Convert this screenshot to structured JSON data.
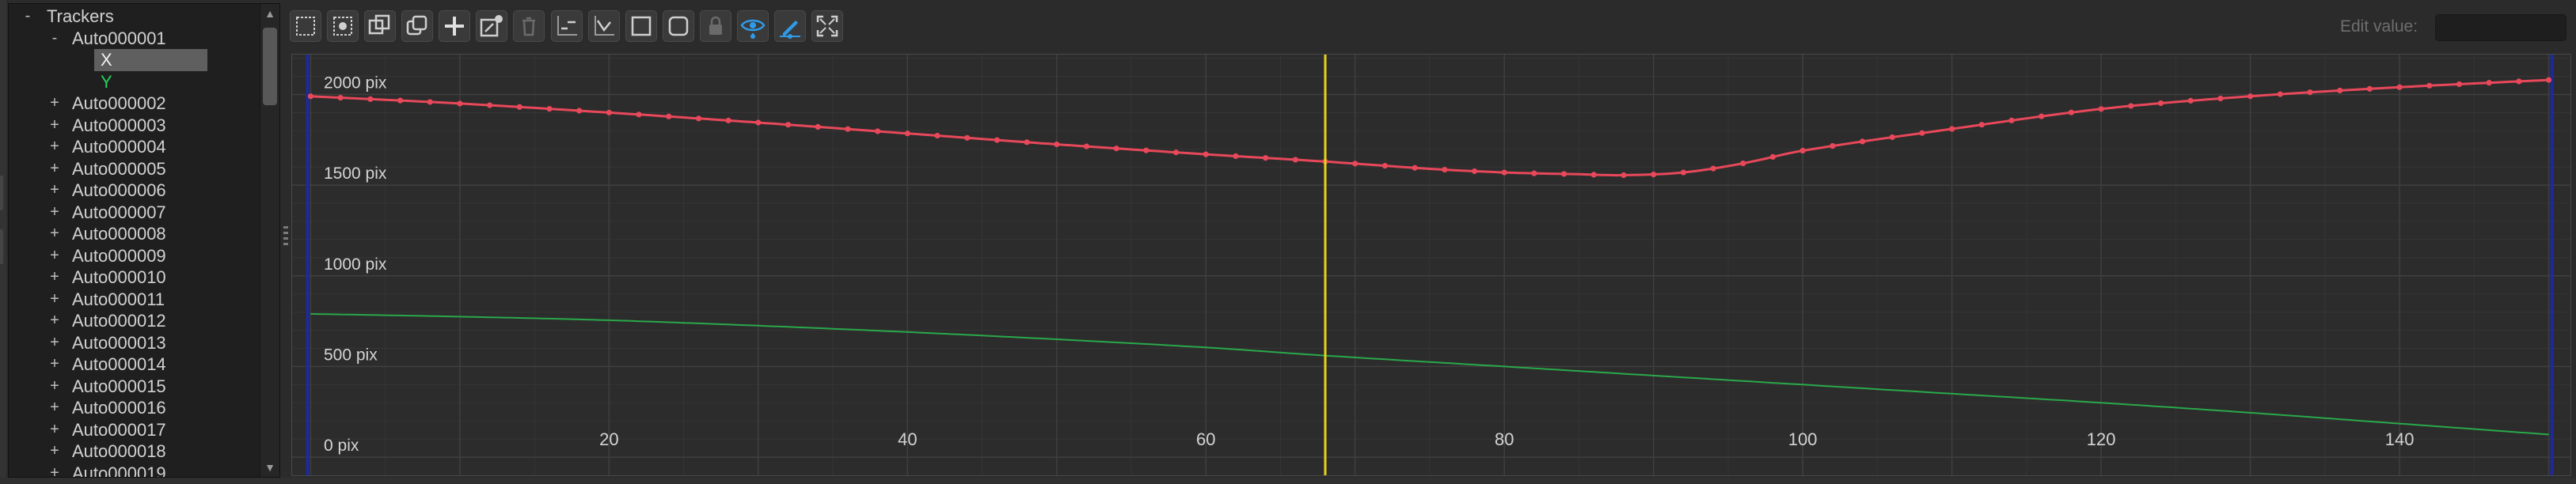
{
  "tree": {
    "root": {
      "label": "Trackers",
      "expander": "-"
    },
    "expanded_tracker": {
      "label": "Auto000001",
      "expander": "-"
    },
    "children": [
      {
        "label": "X",
        "selected": true
      },
      {
        "label": "Y",
        "selected": false
      }
    ],
    "trackers": [
      {
        "label": "Auto000002",
        "expander": "+"
      },
      {
        "label": "Auto000003",
        "expander": "+"
      },
      {
        "label": "Auto000004",
        "expander": "+"
      },
      {
        "label": "Auto000005",
        "expander": "+"
      },
      {
        "label": "Auto000006",
        "expander": "+"
      },
      {
        "label": "Auto000007",
        "expander": "+"
      },
      {
        "label": "Auto000008",
        "expander": "+"
      },
      {
        "label": "Auto000009",
        "expander": "+"
      },
      {
        "label": "Auto000010",
        "expander": "+"
      },
      {
        "label": "Auto000011",
        "expander": "+"
      },
      {
        "label": "Auto000012",
        "expander": "+"
      },
      {
        "label": "Auto000013",
        "expander": "+"
      },
      {
        "label": "Auto000014",
        "expander": "+"
      },
      {
        "label": "Auto000015",
        "expander": "+"
      },
      {
        "label": "Auto000016",
        "expander": "+"
      },
      {
        "label": "Auto000017",
        "expander": "+"
      },
      {
        "label": "Auto000018",
        "expander": "+"
      },
      {
        "label": "Auto000019",
        "expander": "+"
      }
    ],
    "scroll_arrows": {
      "up": "▲",
      "down": "▼"
    }
  },
  "toolbar": {
    "buttons": [
      {
        "name": "select-all-icon"
      },
      {
        "name": "select-keyframe-icon"
      },
      {
        "name": "copy-icon"
      },
      {
        "name": "duplicate-icon"
      },
      {
        "name": "add-keyframe-icon"
      },
      {
        "name": "add-curve-icon"
      },
      {
        "name": "delete-icon",
        "disabled": true
      },
      {
        "name": "extrapolate-icon"
      },
      {
        "name": "interpolate-icon"
      },
      {
        "name": "linear-icon"
      },
      {
        "name": "smooth-icon"
      },
      {
        "name": "lock-icon",
        "disabled": true
      },
      {
        "name": "visibility-eye-icon",
        "active": true
      },
      {
        "name": "edit-pen-icon",
        "active": true
      },
      {
        "name": "fit-view-icon"
      }
    ],
    "edit_value_label": "Edit value:",
    "edit_value": ""
  },
  "chart_data": {
    "type": "line",
    "x_ticks": [
      20,
      40,
      60,
      80,
      100,
      120,
      140
    ],
    "y_ticks": [
      "0 pix",
      "500 pix",
      "1000 pix",
      "1500 pix",
      "2000 pix"
    ],
    "xlim": [
      -0.5,
      150.5
    ],
    "ylim": [
      -100,
      2220
    ],
    "current_frame": 68,
    "grid": true,
    "series": [
      {
        "color": "#e8485a",
        "keyframes_shown": true,
        "x": [
          0,
          10,
          20,
          30,
          40,
          50,
          60,
          68,
          75,
          80,
          85,
          88,
          92,
          96,
          100,
          110,
          120,
          130,
          140,
          150
        ],
        "y": [
          1990,
          1950,
          1900,
          1845,
          1785,
          1725,
          1670,
          1630,
          1590,
          1570,
          1560,
          1555,
          1570,
          1620,
          1690,
          1810,
          1920,
          1990,
          2040,
          2080
        ]
      },
      {
        "color": "#2aa84b",
        "keyframes_shown": false,
        "x": [
          0,
          10,
          20,
          30,
          40,
          50,
          60,
          68,
          80,
          90,
          100,
          110,
          120,
          130,
          140,
          150
        ],
        "y": [
          790,
          775,
          755,
          725,
          690,
          650,
          605,
          560,
          500,
          450,
          400,
          350,
          300,
          245,
          185,
          125
        ]
      }
    ],
    "colors": {
      "current_frame": "#e8d31c",
      "range_markers": "#1e2a9a"
    }
  }
}
